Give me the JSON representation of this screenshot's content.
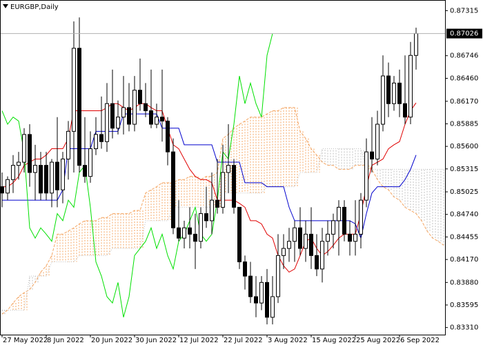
{
  "chart_data": {
    "type": "candlestick",
    "title": "EURGBP,Daily",
    "categories": [
      "27 May 2022",
      null,
      null,
      null,
      null,
      null,
      null,
      null,
      "8 Jun 2022",
      null,
      null,
      null,
      null,
      null,
      null,
      null,
      "20 Jun 2022",
      null,
      null,
      null,
      null,
      null,
      null,
      null,
      "30 Jun 2022",
      null,
      null,
      null,
      null,
      null,
      null,
      null,
      "12 Jul 2022",
      null,
      null,
      null,
      null,
      null,
      null,
      null,
      "22 Jul 2022",
      null,
      null,
      null,
      null,
      null,
      null,
      null,
      "3 Aug 2022",
      null,
      null,
      null,
      null,
      null,
      null,
      null,
      "15 Aug 2022",
      null,
      null,
      null,
      null,
      null,
      null,
      null,
      "25 Aug 2022",
      null,
      null,
      null,
      null,
      null,
      null,
      null,
      "6 Sep 2022",
      null,
      null,
      null,
      null,
      null,
      null,
      null,
      null
    ],
    "open": [
      0.8509,
      0.8501,
      0.8518,
      0.8536,
      0.854,
      0.8575,
      0.8527,
      0.8536,
      0.8536,
      0.8501,
      0.854,
      0.8505,
      0.8544,
      0.8579,
      0.8684,
      0.8536,
      0.8522,
      0.8557,
      0.8575,
      0.8566,
      0.8614,
      0.8583,
      0.8597,
      0.8609,
      0.8588,
      0.8631,
      0.8614,
      0.8605,
      0.8588,
      0.8597,
      0.8592,
      0.8553,
      0.8457,
      0.8444,
      0.8457,
      0.8449,
      0.844,
      0.8475,
      0.8466,
      0.8492,
      0.8483,
      0.8527,
      0.8536,
      0.8483,
      0.8414,
      0.8396,
      0.837,
      0.8362,
      0.8388,
      0.8344,
      0.837,
      0.8422,
      0.8431,
      0.844,
      0.8457,
      0.8431,
      0.8449,
      0.8422,
      0.8405,
      0.844,
      0.8449,
      0.8466,
      0.8483,
      0.8449,
      0.844,
      0.8449,
      0.8492,
      0.8553,
      0.8544,
      0.8588,
      0.8649,
      0.8614,
      0.864,
      0.8614,
      0.8597,
      0.8675,
      null,
      null,
      null,
      null,
      null
    ],
    "high": [
      0.8527,
      0.8522,
      0.8549,
      0.8553,
      0.8583,
      0.8588,
      0.8562,
      0.8553,
      0.8553,
      0.8544,
      0.8597,
      0.8553,
      0.8592,
      0.8718,
      0.8723,
      0.8597,
      0.8579,
      0.8597,
      0.8623,
      0.864,
      0.8657,
      0.8618,
      0.8649,
      0.864,
      0.8649,
      0.8671,
      0.864,
      0.8657,
      0.8614,
      0.8657,
      0.8597,
      0.857,
      0.8492,
      0.8466,
      0.8483,
      0.8475,
      0.8483,
      0.8509,
      0.8527,
      0.8544,
      0.8562,
      0.8588,
      0.8544,
      0.8483,
      0.8422,
      0.8414,
      0.8396,
      0.8396,
      0.8405,
      0.8396,
      0.8449,
      0.8449,
      0.8457,
      0.8466,
      0.8483,
      0.8466,
      0.8483,
      0.8449,
      0.8457,
      0.8466,
      0.8475,
      0.8492,
      0.8492,
      0.8466,
      0.8492,
      0.8501,
      0.857,
      0.8597,
      0.8605,
      0.8675,
      0.8666,
      0.8649,
      0.8657,
      0.8675,
      0.8692,
      0.871,
      null,
      null,
      null,
      null,
      null
    ],
    "low": [
      0.8483,
      0.8492,
      0.8501,
      0.8518,
      0.8527,
      0.8509,
      0.8492,
      0.8492,
      0.8492,
      0.8483,
      0.8483,
      0.8488,
      0.8518,
      0.8527,
      0.8527,
      0.8514,
      0.8514,
      0.8549,
      0.8557,
      0.8553,
      0.857,
      0.8575,
      0.8575,
      0.8579,
      0.8579,
      0.8605,
      0.8597,
      0.8583,
      0.8583,
      0.8566,
      0.8536,
      0.8449,
      0.844,
      0.8431,
      0.8431,
      0.8405,
      0.8431,
      0.8457,
      0.8449,
      0.8475,
      0.8475,
      0.8501,
      0.8475,
      0.8405,
      0.8379,
      0.8362,
      0.8344,
      0.8353,
      0.8335,
      0.8335,
      0.8362,
      0.8405,
      0.8414,
      0.8414,
      0.8422,
      0.8414,
      0.8405,
      0.8396,
      0.8388,
      0.8422,
      0.8431,
      0.8422,
      0.844,
      0.8422,
      0.8422,
      0.8431,
      0.8483,
      0.8527,
      0.8536,
      0.8579,
      0.8597,
      0.8605,
      0.8597,
      0.8588,
      0.8588,
      0.8657,
      null,
      null,
      null,
      null,
      null
    ],
    "close": [
      0.8501,
      0.8518,
      0.8536,
      0.854,
      0.8575,
      0.8527,
      0.8536,
      0.8501,
      0.8501,
      0.854,
      0.8505,
      0.8544,
      0.8579,
      0.8684,
      0.8536,
      0.8522,
      0.8557,
      0.8575,
      0.8566,
      0.8614,
      0.8583,
      0.8597,
      0.8609,
      0.8588,
      0.8631,
      0.8614,
      0.8605,
      0.8588,
      0.8597,
      0.8592,
      0.8553,
      0.8457,
      0.8444,
      0.8457,
      0.8449,
      0.844,
      0.8475,
      0.8466,
      0.8492,
      0.8483,
      0.8527,
      0.8536,
      0.8483,
      0.8414,
      0.8396,
      0.837,
      0.8362,
      0.8388,
      0.8344,
      0.837,
      0.8422,
      0.8431,
      0.844,
      0.8457,
      0.8431,
      0.8449,
      0.8422,
      0.8405,
      0.844,
      0.8449,
      0.8466,
      0.8483,
      0.8449,
      0.844,
      0.8449,
      0.8492,
      0.8553,
      0.8544,
      0.8588,
      0.8649,
      0.8614,
      0.864,
      0.8614,
      0.8597,
      0.8675,
      0.87026,
      null,
      null,
      null,
      null,
      null
    ],
    "bull_color": "#ffffff",
    "bear_color": "#000000",
    "lines": [
      {
        "color": "#e00000",
        "values": [
          0.8509,
          0.8509,
          0.8514,
          0.8522,
          0.8536,
          0.854,
          0.8544,
          0.8544,
          0.8549,
          0.8557,
          0.8557,
          0.8557,
          0.857,
          0.8605,
          0.8605,
          0.8605,
          0.8605,
          0.8605,
          0.8605,
          0.8609,
          0.8614,
          0.8614,
          0.8609,
          0.8605,
          0.8609,
          0.8614,
          0.8614,
          0.8609,
          0.8605,
          0.8605,
          0.8583,
          0.8562,
          0.8557,
          0.8544,
          0.8531,
          0.8522,
          0.8518,
          0.8518,
          0.8514,
          0.8492,
          0.8492,
          0.8492,
          0.8492,
          0.8488,
          0.8483,
          0.8466,
          0.8466,
          0.8462,
          0.8449,
          0.8444,
          0.8422,
          0.8409,
          0.8401,
          0.8405,
          0.8422,
          0.844,
          0.8444,
          0.8431,
          0.8422,
          0.8427,
          0.8435,
          0.8444,
          0.8449,
          0.8449,
          0.8449,
          0.8475,
          0.8509,
          0.8536,
          0.854,
          0.8544,
          0.8557,
          0.8562,
          0.8566,
          0.8588,
          0.8605,
          0.8615,
          null,
          null,
          null,
          null,
          null
        ]
      },
      {
        "color": "#0000cd",
        "values": [
          0.8492,
          0.8492,
          0.8492,
          0.8492,
          0.8492,
          0.8492,
          0.8492,
          0.8492,
          0.8492,
          0.8492,
          0.8492,
          0.8505,
          0.8557,
          0.8557,
          0.8557,
          0.8557,
          0.8557,
          0.8579,
          0.8579,
          0.8579,
          0.8579,
          0.8579,
          0.8601,
          0.8601,
          0.8601,
          0.8601,
          0.8601,
          0.8601,
          0.8601,
          0.8583,
          0.8583,
          0.8583,
          0.8583,
          0.8562,
          0.8562,
          0.8562,
          0.8562,
          0.8562,
          0.8562,
          0.854,
          0.854,
          0.854,
          0.854,
          0.854,
          0.8514,
          0.8514,
          0.8514,
          0.8514,
          0.8509,
          0.8509,
          0.8509,
          0.8509,
          0.8483,
          0.8466,
          0.8466,
          0.8466,
          0.8466,
          0.8466,
          0.8466,
          0.8466,
          0.8466,
          0.8466,
          0.8466,
          0.8466,
          0.8462,
          0.8444,
          0.8475,
          0.8501,
          0.8509,
          0.8509,
          0.8509,
          0.8509,
          0.8509,
          0.8518,
          0.8531,
          0.8549,
          null,
          null,
          null,
          null,
          null
        ]
      },
      {
        "color": "#00e000",
        "values": [
          0.8605,
          0.8588,
          0.8597,
          0.8592,
          0.8553,
          0.8457,
          0.8444,
          0.8457,
          0.8449,
          0.844,
          0.8475,
          0.8466,
          0.8492,
          0.8483,
          0.8527,
          0.8536,
          0.8483,
          0.8414,
          0.8396,
          0.837,
          0.8362,
          0.8388,
          0.8344,
          0.837,
          0.8422,
          0.8431,
          0.844,
          0.8457,
          0.8431,
          0.8449,
          0.8422,
          0.8405,
          0.844,
          0.8449,
          0.8466,
          0.8483,
          0.8449,
          0.844,
          0.8449,
          0.8492,
          0.8553,
          0.8544,
          0.8588,
          0.8649,
          0.8614,
          0.864,
          0.8614,
          0.8597,
          0.8675,
          0.87026,
          null,
          null,
          null,
          null,
          null,
          null,
          null,
          null,
          null,
          null,
          null,
          null,
          null,
          null,
          null,
          null,
          null,
          null,
          null,
          null,
          null,
          null,
          null,
          null,
          null,
          null,
          null,
          null,
          null,
          null,
          null
        ]
      }
    ],
    "cloud": {
      "up_color": "#f4a460",
      "down_color": "#c0c0c0",
      "a": [
        0.8348,
        0.8353,
        0.8362,
        0.837,
        0.8375,
        0.8379,
        0.8388,
        0.8401,
        0.8409,
        0.8422,
        0.8449,
        0.8449,
        0.8453,
        0.8457,
        0.8462,
        0.8466,
        0.8466,
        0.8466,
        0.847,
        0.847,
        0.8475,
        0.8475,
        0.8475,
        0.8475,
        0.8479,
        0.8479,
        0.8501,
        0.8505,
        0.8509,
        0.8514,
        0.8514,
        0.8514,
        0.8518,
        0.8518,
        0.8522,
        0.8522,
        0.8518,
        0.8522,
        0.8522,
        0.8527,
        0.857,
        0.8575,
        0.8583,
        0.8588,
        0.8592,
        0.8597,
        0.8597,
        0.8597,
        0.8601,
        0.8605,
        0.8605,
        0.8609,
        0.8609,
        0.8609,
        0.8579,
        0.857,
        0.8557,
        0.8549,
        0.854,
        0.8536,
        0.8536,
        0.8531,
        0.8531,
        0.8531,
        0.8536,
        0.8536,
        0.8536,
        0.8531,
        0.8518,
        0.8509,
        0.8505,
        0.8496,
        0.8492,
        0.8483,
        0.8479,
        0.8475,
        0.8466,
        0.8453,
        0.8444,
        0.844,
        0.8435
      ],
      "b": [
        0.8353,
        0.8353,
        0.8353,
        0.8353,
        0.8353,
        0.8396,
        0.8396,
        0.8396,
        0.8396,
        0.8414,
        0.8414,
        0.8414,
        0.8414,
        0.8414,
        0.8422,
        0.8422,
        0.8422,
        0.8422,
        0.8422,
        0.8422,
        0.8431,
        0.8431,
        0.8431,
        0.8431,
        0.8431,
        0.8431,
        0.8466,
        0.8466,
        0.8466,
        0.8466,
        0.8466,
        0.8483,
        0.8483,
        0.8483,
        0.8483,
        0.8483,
        0.8483,
        0.8483,
        0.8483,
        0.8483,
        0.8501,
        0.8501,
        0.8501,
        0.8501,
        0.8501,
        0.8501,
        0.8501,
        0.8501,
        0.8509,
        0.8509,
        0.8509,
        0.8509,
        0.8509,
        0.8509,
        0.8527,
        0.8527,
        0.8527,
        0.8527,
        0.8557,
        0.8557,
        0.8557,
        0.8557,
        0.8557,
        0.8557,
        0.8557,
        0.8557,
        0.8531,
        0.8531,
        0.8531,
        0.8531,
        0.8531,
        0.8531,
        0.8531,
        0.8531,
        0.8531,
        0.8531,
        0.8531,
        0.8531,
        0.8531,
        0.8531,
        0.8531
      ]
    },
    "ylim": [
      0.8322,
      0.8745
    ],
    "yticks": [
      0.87315,
      0.86746,
      {
        "value": 0.8646,
        "label": "0.86460"
      },
      {
        "value": 0.8617,
        "label": "0.86170"
      },
      0.85885,
      {
        "value": 0.856,
        "label": "0.85600"
      },
      0.85315,
      0.85025,
      {
        "value": 0.8474,
        "label": "0.84740"
      },
      0.84455,
      {
        "value": 0.8417,
        "label": "0.84170"
      },
      {
        "value": 0.8388,
        "label": "0.83880"
      },
      0.83595,
      {
        "value": 0.8331,
        "label": "0.83310"
      }
    ]
  }
}
